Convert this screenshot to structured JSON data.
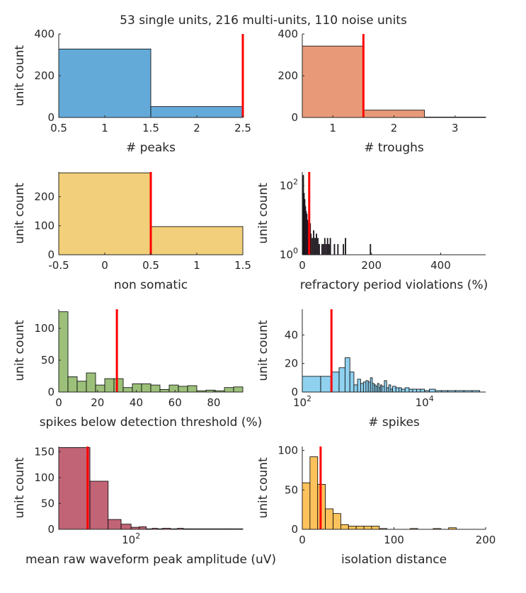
{
  "figure": {
    "title": "53 single units, 216 multi-units, 110 noise units"
  },
  "colors": {
    "threshold": "#ff0000",
    "axis": "#262626"
  },
  "chart_data": [
    {
      "type": "bar",
      "id": "peaks",
      "xlabel": "# peaks",
      "ylabel": "unit count",
      "xlim": [
        0.5,
        2.5
      ],
      "ylim": [
        0,
        400
      ],
      "xticks": [
        0.5,
        1,
        1.5,
        2,
        2.5
      ],
      "xtick_labels": [
        "0.5",
        "1",
        "1.5",
        "2",
        "2.5"
      ],
      "yticks": [
        0,
        200,
        400
      ],
      "ytick_labels": [
        "0",
        "200",
        "400"
      ],
      "color": "#64aad9",
      "bins": [
        [
          0.5,
          1.5,
          328
        ],
        [
          1.5,
          2.5,
          52
        ]
      ],
      "threshold": 2.5
    },
    {
      "type": "bar",
      "id": "troughs",
      "xlabel": "# troughs",
      "ylabel": "",
      "xlim": [
        0.5,
        3.5
      ],
      "ylim": [
        0,
        400
      ],
      "xticks": [
        1,
        2,
        3
      ],
      "xtick_labels": [
        "1",
        "2",
        "3"
      ],
      "yticks": [
        0,
        200,
        400
      ],
      "ytick_labels": [
        "0",
        "200",
        "400"
      ],
      "color": "#e89a78",
      "bins": [
        [
          0.5,
          1.5,
          342
        ],
        [
          1.5,
          2.5,
          35
        ],
        [
          2.5,
          3.5,
          2
        ]
      ],
      "threshold": 1.5
    },
    {
      "type": "bar",
      "id": "somatic",
      "xlabel": "non somatic",
      "ylabel": "unit count",
      "xlim": [
        -0.5,
        1.5
      ],
      "ylim": [
        0,
        285
      ],
      "xticks": [
        -0.5,
        0,
        0.5,
        1,
        1.5
      ],
      "xtick_labels": [
        "-0.5",
        "0",
        "0.5",
        "1",
        "1.5"
      ],
      "yticks": [
        0,
        100,
        200
      ],
      "ytick_labels": [
        "0",
        "100",
        "200"
      ],
      "color": "#f2cf7a",
      "bins": [
        [
          -0.5,
          0.5,
          282
        ],
        [
          0.5,
          1.5,
          97
        ]
      ],
      "threshold": 0.5
    },
    {
      "type": "bar",
      "id": "refractory",
      "xlabel": "refractory period violations (%)",
      "ylabel": "unit count",
      "xlim": [
        0,
        530
      ],
      "ylim": [
        1,
        250
      ],
      "yscale": "log",
      "xticks": [
        0,
        200,
        400
      ],
      "xtick_labels": [
        "0",
        "200",
        "400"
      ],
      "yticks": [
        1,
        100
      ],
      "ytick_labels": [
        "10^0",
        "10^2"
      ],
      "color": "#b07ab8",
      "bins": [
        [
          2,
          4,
          200
        ],
        [
          4,
          6,
          60
        ],
        [
          6,
          8,
          40
        ],
        [
          8,
          10,
          25
        ],
        [
          10,
          12,
          18
        ],
        [
          12,
          14,
          15
        ],
        [
          14,
          16,
          10
        ],
        [
          16,
          18,
          8
        ],
        [
          18,
          20,
          6
        ],
        [
          20,
          22,
          5
        ],
        [
          22,
          24,
          8
        ],
        [
          24,
          26,
          4
        ],
        [
          28,
          30,
          3
        ],
        [
          32,
          34,
          5
        ],
        [
          36,
          38,
          3
        ],
        [
          40,
          42,
          4
        ],
        [
          44,
          46,
          3
        ],
        [
          48,
          50,
          2
        ],
        [
          56,
          58,
          2
        ],
        [
          60,
          62,
          2
        ],
        [
          64,
          66,
          3
        ],
        [
          68,
          70,
          2
        ],
        [
          72,
          74,
          3
        ],
        [
          76,
          78,
          2
        ],
        [
          80,
          82,
          3
        ],
        [
          92,
          94,
          2
        ],
        [
          102,
          104,
          2
        ],
        [
          118,
          120,
          2
        ],
        [
          124,
          126,
          3
        ],
        [
          196,
          198,
          2
        ]
      ],
      "threshold": 20
    },
    {
      "type": "bar",
      "id": "spikes_below_threshold",
      "xlabel": "spikes below detection threshold (%)",
      "ylabel": "unit count",
      "xlim": [
        0,
        95
      ],
      "ylim": [
        0,
        130
      ],
      "xticks": [
        0,
        20,
        40,
        60,
        80
      ],
      "xtick_labels": [
        "0",
        "20",
        "40",
        "60",
        "80"
      ],
      "yticks": [
        0,
        50,
        100
      ],
      "ytick_labels": [
        "0",
        "50",
        "100"
      ],
      "color": "#9cc07a",
      "bins": [
        [
          0,
          4.75,
          126
        ],
        [
          4.75,
          9.5,
          24
        ],
        [
          9.5,
          14.25,
          17
        ],
        [
          14.25,
          19,
          30
        ],
        [
          19,
          23.75,
          11
        ],
        [
          23.75,
          28.5,
          21
        ],
        [
          28.5,
          33.25,
          21
        ],
        [
          33.25,
          38,
          7
        ],
        [
          38,
          42.75,
          13
        ],
        [
          42.75,
          47.5,
          13
        ],
        [
          47.5,
          52.25,
          11
        ],
        [
          52.25,
          57,
          4
        ],
        [
          57,
          61.75,
          11
        ],
        [
          61.75,
          66.5,
          9
        ],
        [
          66.5,
          71.25,
          10
        ],
        [
          71.25,
          76,
          2
        ],
        [
          76,
          80.75,
          3
        ],
        [
          80.75,
          85.5,
          2
        ],
        [
          85.5,
          90.25,
          7
        ],
        [
          90.25,
          95,
          8
        ]
      ],
      "threshold": 30
    },
    {
      "type": "bar",
      "id": "n_spikes",
      "xlabel": "# spikes",
      "ylabel": "unit count",
      "xscale": "log",
      "xlim": [
        100,
        100000
      ],
      "ylim": [
        0,
        58
      ],
      "xticks": [
        100,
        10000
      ],
      "xtick_labels": [
        "10^2",
        "10^4"
      ],
      "yticks": [
        0,
        20,
        40
      ],
      "ytick_labels": [
        "0",
        "20",
        "40"
      ],
      "color": "#8fd1ef",
      "bins": [
        [
          100,
          200,
          11
        ],
        [
          200,
          300,
          11
        ],
        [
          300,
          400,
          14
        ],
        [
          400,
          500,
          17
        ],
        [
          500,
          600,
          24
        ],
        [
          600,
          700,
          14
        ],
        [
          700,
          800,
          5
        ],
        [
          800,
          900,
          9
        ],
        [
          900,
          1000,
          6
        ],
        [
          1000,
          1100,
          7
        ],
        [
          1100,
          1200,
          8
        ],
        [
          1200,
          1300,
          7
        ],
        [
          1300,
          1400,
          10
        ],
        [
          1400,
          1500,
          6
        ],
        [
          1500,
          1600,
          5
        ],
        [
          1600,
          1700,
          4
        ],
        [
          1700,
          1800,
          6
        ],
        [
          1800,
          1900,
          3
        ],
        [
          1900,
          2000,
          5
        ],
        [
          2000,
          2200,
          4
        ],
        [
          2200,
          2400,
          8
        ],
        [
          2400,
          2600,
          3
        ],
        [
          2600,
          2800,
          5
        ],
        [
          2800,
          3000,
          2
        ],
        [
          3000,
          3400,
          4
        ],
        [
          3400,
          3800,
          3
        ],
        [
          3800,
          4200,
          3
        ],
        [
          4200,
          4800,
          2
        ],
        [
          4800,
          5600,
          3
        ],
        [
          5600,
          6400,
          2
        ],
        [
          6400,
          7400,
          2
        ],
        [
          7400,
          8600,
          2
        ],
        [
          8600,
          10000,
          2
        ],
        [
          10000,
          12000,
          1
        ],
        [
          12000,
          15000,
          2
        ],
        [
          15000,
          19000,
          1
        ],
        [
          19000,
          24000,
          1
        ],
        [
          24000,
          32000,
          1
        ],
        [
          32000,
          44000,
          1
        ],
        [
          44000,
          60000,
          1
        ],
        [
          60000,
          80000,
          1
        ]
      ],
      "threshold": 300
    },
    {
      "type": "bar",
      "id": "amplitude",
      "xlabel": "mean raw waveform peak amplitude (uV)",
      "ylabel": "unit count",
      "xscale": "log",
      "xlim": [
        20,
        1200
      ],
      "ylim": [
        0,
        160
      ],
      "xticks": [
        100
      ],
      "xtick_labels": [
        "10^2"
      ],
      "yticks": [
        0,
        50,
        100,
        150
      ],
      "ytick_labels": [
        "0",
        "50",
        "100",
        "150"
      ],
      "color": "#c06476",
      "bins": [
        [
          20,
          40,
          158
        ],
        [
          40,
          60,
          93
        ],
        [
          60,
          80,
          19
        ],
        [
          80,
          100,
          10
        ],
        [
          100,
          120,
          4
        ],
        [
          120,
          140,
          5
        ],
        [
          140,
          160,
          1
        ],
        [
          160,
          180,
          2
        ],
        [
          180,
          200,
          1
        ],
        [
          200,
          240,
          2
        ],
        [
          240,
          280,
          1
        ],
        [
          280,
          320,
          2
        ],
        [
          320,
          380,
          1
        ],
        [
          380,
          460,
          1
        ],
        [
          460,
          560,
          1
        ],
        [
          560,
          700,
          1
        ],
        [
          700,
          900,
          1
        ],
        [
          900,
          1200,
          1
        ]
      ],
      "threshold": 38
    },
    {
      "type": "bar",
      "id": "isolation",
      "xlabel": "isolation distance",
      "ylabel": "unit count",
      "xlim": [
        0,
        200
      ],
      "ylim": [
        0,
        105
      ],
      "xticks": [
        0,
        100,
        200
      ],
      "xtick_labels": [
        "0",
        "100",
        "200"
      ],
      "yticks": [
        0,
        50,
        100
      ],
      "ytick_labels": [
        "0",
        "50",
        "100"
      ],
      "color": "#fdc25b",
      "bins": [
        [
          0,
          8.4,
          59
        ],
        [
          8.4,
          16.8,
          92
        ],
        [
          16.8,
          25.2,
          57
        ],
        [
          25.2,
          33.6,
          26
        ],
        [
          33.6,
          42,
          20
        ],
        [
          42,
          50.4,
          6
        ],
        [
          50.4,
          58.8,
          4
        ],
        [
          58.8,
          67.2,
          4
        ],
        [
          67.2,
          75.6,
          4
        ],
        [
          75.6,
          84,
          4
        ],
        [
          84,
          92.4,
          1
        ],
        [
          117.6,
          126,
          1
        ],
        [
          142.8,
          151.2,
          1
        ],
        [
          159.6,
          168,
          2
        ]
      ],
      "threshold": 20
    }
  ]
}
